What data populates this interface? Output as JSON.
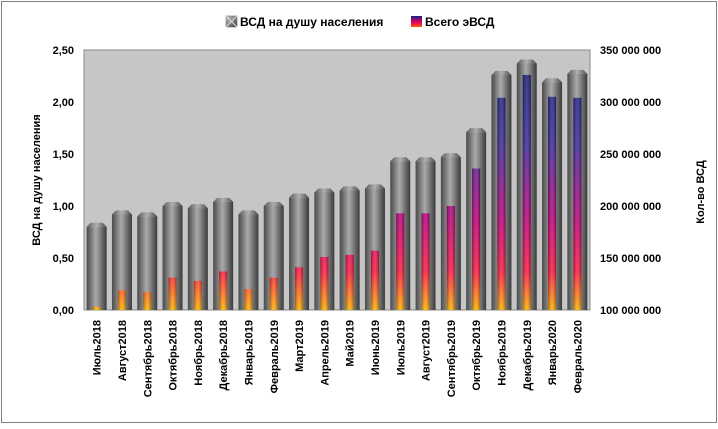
{
  "colors": {
    "outer_border": "#7f7f7f",
    "plot_background": "#c6c6c6",
    "plot_border": "#7f7f7f",
    "grey_bar_light": "#a6a6a6",
    "grey_bar_dark": "#3a3a3a",
    "grey_bar_top": "#8a8a8a",
    "inner_bar_top": "#1a237e",
    "inner_bar_mid": "#e0006a",
    "inner_bar_bottom": "#ffb300",
    "text": "#000000"
  },
  "chart_data": {
    "type": "bar",
    "title": "",
    "categories": [
      "Июль2018",
      "Август2018",
      "Сентябрь2018",
      "Октябрь2018",
      "Ноябрь2018",
      "Декабрь2018",
      "Январь2019",
      "Февраль2019",
      "Март2019",
      "Апрель2019",
      "Май2019",
      "Июнь2019",
      "Июль2019",
      "Август2019",
      "Сентябрь2019",
      "Октябрь2019",
      "Ноябрь2019",
      "Декабрь2019",
      "Январь2020",
      "Февраль2020"
    ],
    "series": [
      {
        "name": "ВСД на душу населения",
        "axis": "left",
        "values": [
          0.8,
          0.92,
          0.9,
          1.0,
          0.98,
          1.04,
          0.92,
          1.0,
          1.08,
          1.13,
          1.15,
          1.17,
          1.43,
          1.43,
          1.47,
          1.71,
          2.26,
          2.37,
          2.19,
          2.27
        ]
      },
      {
        "name": "Всего эВСД",
        "axis": "right",
        "values": [
          103000000,
          119000000,
          117000000,
          131000000,
          128000000,
          137000000,
          120000000,
          131000000,
          141000000,
          151000000,
          153000000,
          157000000,
          193000000,
          193000000,
          200000000,
          236000000,
          304000000,
          326000000,
          305000000,
          304000000
        ]
      }
    ],
    "y_left": {
      "label": "ВСД на душу населения",
      "min": 0,
      "max": 2.5,
      "ticks": [
        "0,00",
        "0,50",
        "1,00",
        "1,50",
        "2,00",
        "2,50"
      ]
    },
    "y_right": {
      "label": "Кол-во ВСД",
      "min": 100000000,
      "max": 350000000,
      "ticks": [
        "100 000 000",
        "150 000 000",
        "200 000 000",
        "250 000 000",
        "300 000 000",
        "350 000 000"
      ]
    },
    "legend_position": "top",
    "grid": false
  }
}
